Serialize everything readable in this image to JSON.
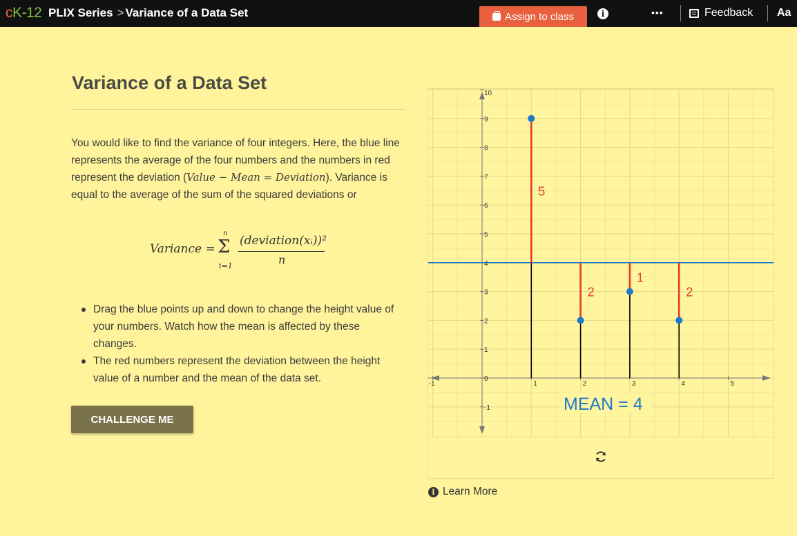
{
  "header": {
    "logo_c": "c",
    "logo_k": "K-12",
    "series": "PLIX Series",
    "separator": ">",
    "page": "Variance of a Data Set",
    "assign_label": "Assign to class",
    "more_label": "•••",
    "feedback_label": "Feedback",
    "font_label": "Aa"
  },
  "content": {
    "title": "Variance of a Data Set",
    "para_1": "You would like to find the variance of four integers. Here, the blue line represents the average of the four numbers and the numbers in red represent the deviation (",
    "para_math": "Value − Mean = Deviation",
    "para_2": "). Variance is equal to the average of the sum of the squared deviations or",
    "formula": {
      "lhs": "Variance =",
      "sigma": "Σ",
      "upper": "n",
      "lower": "i=1",
      "numerator": "(deviation(xᵢ))²",
      "denominator": "n"
    },
    "bullets": [
      "Drag the blue points up and down to change the height value of your numbers. Watch how the mean is affected by these changes.",
      "The red numbers represent the deviation between the height value of a number and the mean of the data set."
    ],
    "challenge_label": "CHALLENGE ME",
    "learn_more": "Learn More"
  },
  "chart_data": {
    "type": "scatter",
    "x_ticks": [
      "-1",
      "1",
      "2",
      "3",
      "4",
      "5"
    ],
    "y_ticks": [
      "-1",
      "0",
      "1",
      "2",
      "3",
      "4",
      "5",
      "6",
      "7",
      "8",
      "9",
      "10"
    ],
    "xlim": [
      -1,
      5.8
    ],
    "ylim": [
      -1.6,
      10
    ],
    "mean": 4,
    "mean_label": "MEAN = 4",
    "points": [
      {
        "x": 1,
        "y": 9,
        "deviation": "5"
      },
      {
        "x": 2,
        "y": 2,
        "deviation": "2"
      },
      {
        "x": 3,
        "y": 3,
        "deviation": "1"
      },
      {
        "x": 4,
        "y": 2,
        "deviation": "2"
      }
    ],
    "colors": {
      "point": "#1f78c8",
      "mean_line": "#1f78c8",
      "deviation": "#e8392f",
      "stem": "#000000",
      "grid": "#e8dc8e"
    },
    "grid": true
  }
}
